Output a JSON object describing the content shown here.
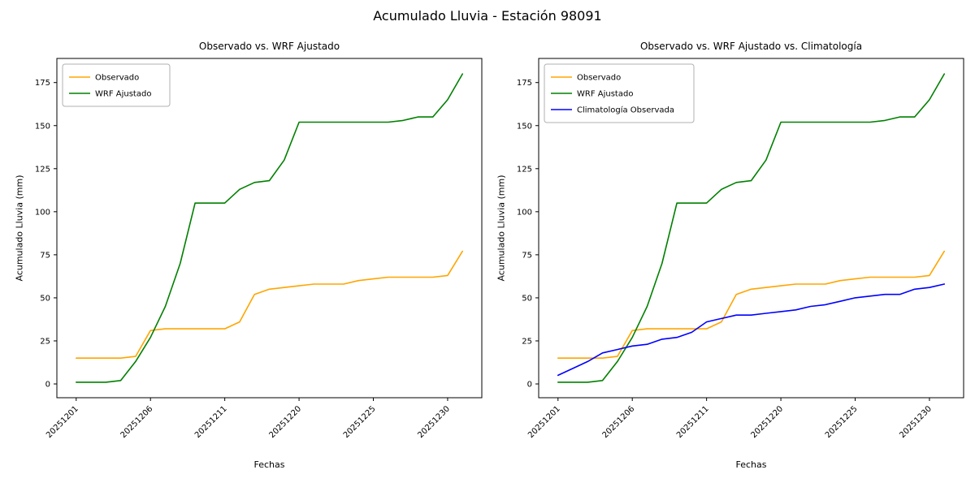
{
  "figure": {
    "title": "Acumulado Lluvia - Estación 98091",
    "background": "#ffffff",
    "text_color": "#000000"
  },
  "colors": {
    "observado": "#ffa500",
    "wrf_ajustado": "#008000",
    "climatologia": "#0000ff",
    "axis": "#000000",
    "legend_border": "#b0b0b0"
  },
  "chart_data": [
    {
      "type": "line",
      "title": "Observado vs. WRF Ajustado",
      "xlabel": "Fechas",
      "ylabel": "Acumulado Lluvia (mm)",
      "grid": false,
      "legend_position": "upper-left",
      "yticks": [
        0,
        25,
        50,
        75,
        100,
        125,
        150,
        175
      ],
      "ylim": [
        -8,
        189
      ],
      "xlim": [
        -1.3,
        27.3
      ],
      "n_points": 27,
      "xtick_positions": [
        0,
        5,
        10,
        15,
        20,
        25
      ],
      "xtick_labels": [
        "20251201",
        "20251206",
        "20251211",
        "20251220",
        "20251225",
        "20251230"
      ],
      "series": [
        {
          "name": "Observado",
          "color": "#ffa500",
          "values": [
            15,
            15,
            15,
            15,
            16,
            31,
            32,
            32,
            32,
            32,
            32,
            36,
            52,
            55,
            56,
            57,
            58,
            58,
            58,
            60,
            61,
            62,
            62,
            62,
            62,
            63,
            77
          ]
        },
        {
          "name": "WRF Ajustado",
          "color": "#008000",
          "values": [
            1,
            1,
            1,
            2,
            13,
            27,
            45,
            70,
            105,
            105,
            105,
            113,
            117,
            118,
            130,
            152,
            152,
            152,
            152,
            152,
            152,
            152,
            153,
            155,
            155,
            165,
            180
          ]
        }
      ]
    },
    {
      "type": "line",
      "title": "Observado vs. WRF Ajustado vs. Climatología",
      "xlabel": "Fechas",
      "ylabel": "Acumulado Lluvia (mm)",
      "grid": false,
      "legend_position": "upper-left",
      "yticks": [
        0,
        25,
        50,
        75,
        100,
        125,
        150,
        175
      ],
      "ylim": [
        -8,
        189
      ],
      "xlim": [
        -1.3,
        27.3
      ],
      "n_points": 27,
      "xtick_positions": [
        0,
        5,
        10,
        15,
        20,
        25
      ],
      "xtick_labels": [
        "20251201",
        "20251206",
        "20251211",
        "20251220",
        "20251225",
        "20251230"
      ],
      "series": [
        {
          "name": "Observado",
          "color": "#ffa500",
          "values": [
            15,
            15,
            15,
            15,
            16,
            31,
            32,
            32,
            32,
            32,
            32,
            36,
            52,
            55,
            56,
            57,
            58,
            58,
            58,
            60,
            61,
            62,
            62,
            62,
            62,
            63,
            77
          ]
        },
        {
          "name": "WRF Ajustado",
          "color": "#008000",
          "values": [
            1,
            1,
            1,
            2,
            13,
            27,
            45,
            70,
            105,
            105,
            105,
            113,
            117,
            118,
            130,
            152,
            152,
            152,
            152,
            152,
            152,
            152,
            153,
            155,
            155,
            165,
            180
          ]
        },
        {
          "name": "Climatología Observada",
          "color": "#0000ff",
          "values": [
            5,
            9,
            13,
            18,
            20,
            22,
            23,
            26,
            27,
            30,
            36,
            38,
            40,
            40,
            41,
            42,
            43,
            45,
            46,
            48,
            50,
            51,
            52,
            52,
            55,
            56,
            58
          ]
        }
      ]
    }
  ]
}
